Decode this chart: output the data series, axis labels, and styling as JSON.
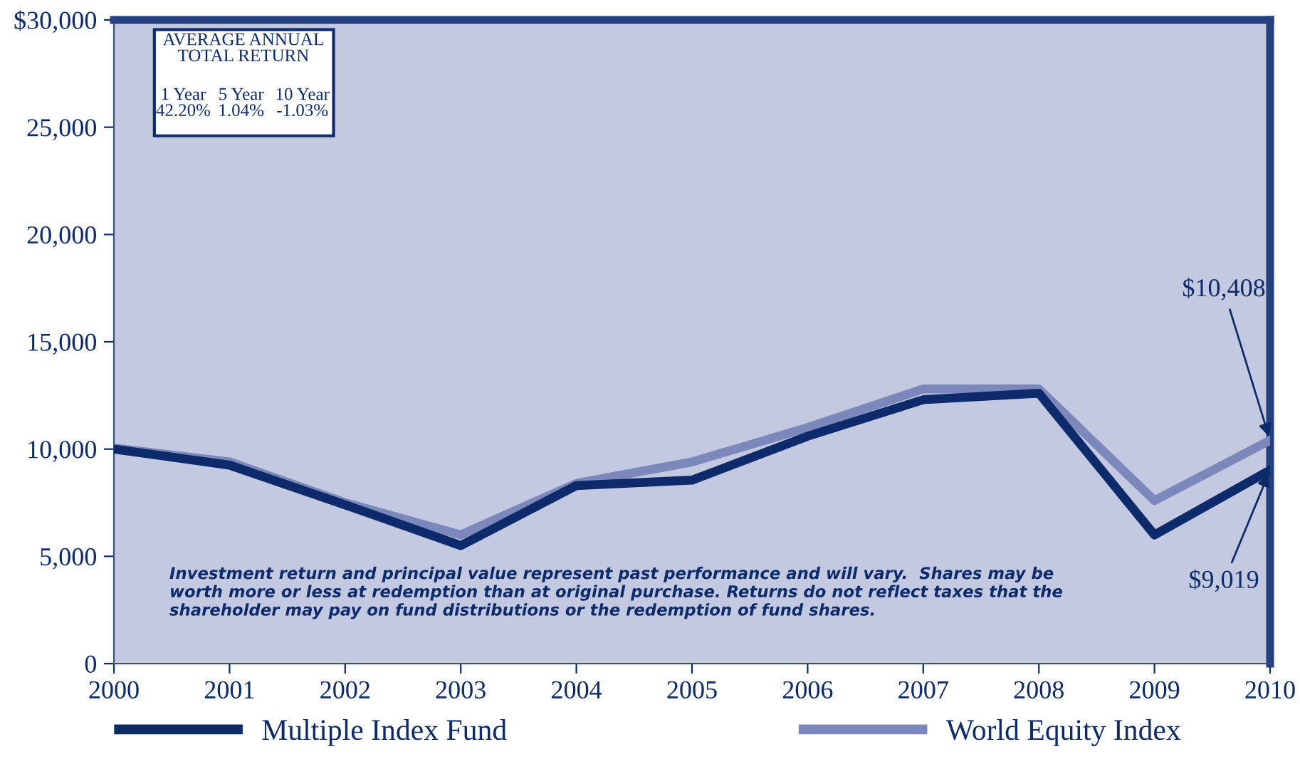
{
  "chart_data": {
    "type": "line",
    "x": [
      2000,
      2001,
      2002,
      2003,
      2004,
      2005,
      2006,
      2007,
      2008,
      2009,
      2010
    ],
    "series": [
      {
        "name": "Multiple Index Fund",
        "color": "#0d2b6b",
        "values": [
          10000,
          9250,
          7400,
          5500,
          8300,
          8550,
          10600,
          12300,
          12600,
          6000,
          9019
        ]
      },
      {
        "name": "World Equity Index",
        "color": "#7c88bb",
        "values": [
          10050,
          9400,
          7500,
          6000,
          8400,
          9400,
          11000,
          12800,
          12800,
          7600,
          10408
        ]
      }
    ],
    "xlim": [
      2000,
      2010
    ],
    "xticks": [
      2000,
      2001,
      2002,
      2003,
      2004,
      2005,
      2006,
      2007,
      2008,
      2009,
      2010
    ],
    "ylim": [
      0,
      30000
    ],
    "yticks": [
      {
        "value": 0,
        "label": "0"
      },
      {
        "value": 5000,
        "label": "5,000"
      },
      {
        "value": 10000,
        "label": "10,000"
      },
      {
        "value": 15000,
        "label": "15,000"
      },
      {
        "value": 20000,
        "label": "20,000"
      },
      {
        "value": 25000,
        "label": "25,000"
      },
      {
        "value": 30000,
        "label": "$30,000"
      }
    ],
    "grid": false,
    "legend": "bottom",
    "marker": "none",
    "line_style": "solid",
    "annotations": [
      "AVERAGE ANNUAL\nTOTAL RETURN",
      "1 Year\n42.20%",
      "5 Year\n1.04%",
      "10 Year\n-1.03%",
      "Investment return and principal value represent past performance and will vary.  Shares may be\nworth more or less at redemption than at original purchase. Returns do not reflect taxes that the\nshareholder may pay on fund distributions or the redemption of fund shares.",
      {
        "text": "$10,408",
        "x": 2010,
        "y": 10408
      },
      {
        "text": "$9,019",
        "x": 2010,
        "y": 9019
      }
    ]
  }
}
